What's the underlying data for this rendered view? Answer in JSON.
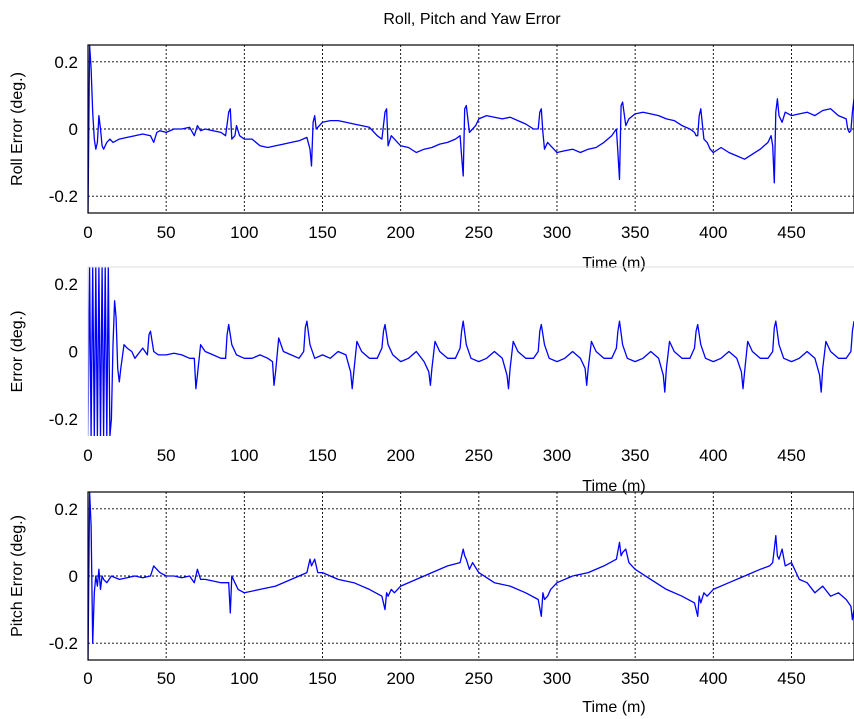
{
  "title": "Roll, Pitch and Yaw Error",
  "chart_data": [
    {
      "type": "line",
      "ylabel": "Roll Error (deg.)",
      "xlabel": "Time (m)",
      "xlim": [
        0,
        490
      ],
      "ylim": [
        -0.25,
        0.25
      ],
      "grid": true,
      "xticks": [
        "0",
        "50",
        "100",
        "150",
        "200",
        "250",
        "300",
        "350",
        "400",
        "450"
      ],
      "yticks": [
        "-0.2",
        "0",
        "0.2"
      ],
      "color": "#0000ff",
      "series": [
        {
          "x": [
            0,
            1,
            2,
            3,
            4,
            5,
            6,
            7,
            8,
            9,
            10,
            12,
            14,
            16,
            20,
            25,
            30,
            35,
            40,
            42,
            44,
            46,
            50,
            55,
            60,
            65,
            68,
            70,
            72,
            75,
            80,
            85,
            88,
            90,
            91,
            92,
            94,
            95,
            97,
            100,
            105,
            110,
            115,
            120,
            125,
            130,
            135,
            140,
            142,
            143,
            144,
            145,
            146,
            148,
            150,
            155,
            160,
            165,
            170,
            175,
            180,
            185,
            188,
            190,
            191,
            192,
            194,
            196,
            198,
            200,
            205,
            210,
            215,
            220,
            225,
            230,
            235,
            238,
            239,
            240,
            241,
            242,
            244,
            246,
            248,
            250,
            255,
            260,
            265,
            270,
            275,
            280,
            285,
            288,
            289,
            290,
            291,
            292,
            294,
            296,
            298,
            300,
            305,
            310,
            315,
            320,
            325,
            330,
            335,
            338,
            339,
            340,
            341,
            342,
            344,
            346,
            350,
            355,
            360,
            365,
            370,
            375,
            380,
            385,
            388,
            389,
            390,
            391,
            392,
            394,
            396,
            398,
            400,
            405,
            410,
            415,
            420,
            425,
            430,
            435,
            437,
            438,
            439,
            440,
            441,
            442,
            444,
            446,
            450,
            455,
            460,
            465,
            470,
            475,
            480,
            485,
            486,
            487,
            488,
            489,
            490
          ],
          "y": [
            -0.25,
            0.25,
            0.18,
            0.05,
            -0.03,
            -0.06,
            -0.04,
            0.04,
            0.0,
            -0.05,
            -0.06,
            -0.04,
            -0.03,
            -0.04,
            -0.03,
            -0.025,
            -0.02,
            -0.015,
            -0.02,
            -0.04,
            -0.01,
            -0.005,
            -0.01,
            0.0,
            0.0,
            0.005,
            -0.02,
            0.01,
            -0.005,
            0.0,
            -0.005,
            -0.01,
            -0.02,
            0.05,
            0.06,
            -0.03,
            -0.02,
            0.01,
            -0.02,
            -0.03,
            -0.03,
            -0.05,
            -0.055,
            -0.05,
            -0.045,
            -0.04,
            -0.035,
            -0.025,
            -0.06,
            -0.11,
            0.02,
            0.04,
            0.0,
            0.01,
            0.02,
            0.025,
            0.025,
            0.02,
            0.015,
            0.01,
            0.005,
            -0.02,
            -0.03,
            0.05,
            0.06,
            -0.05,
            -0.02,
            -0.03,
            -0.04,
            -0.05,
            -0.055,
            -0.07,
            -0.06,
            -0.055,
            -0.045,
            -0.04,
            -0.03,
            -0.02,
            -0.08,
            -0.14,
            0.06,
            0.07,
            -0.01,
            0.0,
            0.01,
            0.03,
            0.04,
            0.035,
            0.03,
            0.035,
            0.025,
            0.015,
            0.0,
            0.0,
            0.05,
            0.06,
            -0.01,
            -0.06,
            -0.04,
            -0.05,
            -0.06,
            -0.07,
            -0.065,
            -0.06,
            -0.07,
            -0.06,
            -0.055,
            -0.04,
            -0.02,
            0.0,
            -0.07,
            -0.15,
            0.07,
            0.08,
            0.01,
            0.03,
            0.045,
            0.05,
            0.045,
            0.04,
            0.03,
            0.025,
            0.01,
            0.0,
            -0.01,
            -0.02,
            -0.02,
            0.04,
            0.06,
            -0.03,
            -0.04,
            -0.06,
            -0.07,
            -0.055,
            -0.07,
            -0.08,
            -0.09,
            -0.075,
            -0.06,
            -0.04,
            -0.02,
            -0.05,
            -0.16,
            0.05,
            0.09,
            0.04,
            0.02,
            0.05,
            0.04,
            0.045,
            0.05,
            0.04,
            0.055,
            0.06,
            0.04,
            0.03,
            0.0,
            -0.01,
            -0.005,
            0.05,
            0.09
          ]
        }
      ]
    },
    {
      "type": "line",
      "ylabel": "Error (deg.)",
      "xlabel": "Time (m)",
      "xlim": [
        0,
        490
      ],
      "ylim": [
        -0.25,
        0.25
      ],
      "grid": false,
      "xticks": [
        "0",
        "50",
        "100",
        "150",
        "200",
        "250",
        "300",
        "350",
        "400",
        "450"
      ],
      "yticks": [
        "-0.2",
        "0",
        "0.2"
      ],
      "color": "#0000ff",
      "series": [
        {
          "x": [
            0,
            1,
            2,
            3,
            4,
            5,
            6,
            7,
            8,
            9,
            10,
            11,
            12,
            13,
            14,
            15,
            16,
            17,
            18,
            19,
            20,
            21,
            23,
            25,
            28,
            30,
            35,
            38,
            39,
            40,
            42,
            45,
            50,
            55,
            60,
            65,
            68,
            69,
            70,
            72,
            75,
            80,
            85,
            88,
            89,
            90,
            92,
            95,
            100,
            105,
            110,
            115,
            118,
            119,
            120,
            122,
            125,
            130,
            135,
            138,
            139,
            140,
            142,
            145,
            150,
            155,
            160,
            165,
            168,
            169,
            170,
            172,
            175,
            180,
            185,
            188,
            189,
            190,
            192,
            195,
            200,
            205,
            210,
            215,
            218,
            219,
            220,
            222,
            225,
            230,
            235,
            238,
            239,
            240,
            242,
            245,
            250,
            255,
            260,
            265,
            268,
            269,
            270,
            272,
            275,
            280,
            285,
            288,
            289,
            290,
            292,
            295,
            300,
            305,
            310,
            315,
            318,
            319,
            320,
            322,
            325,
            330,
            335,
            338,
            339,
            340,
            342,
            345,
            350,
            355,
            360,
            365,
            368,
            369,
            370,
            372,
            375,
            380,
            385,
            388,
            389,
            390,
            392,
            395,
            400,
            405,
            410,
            415,
            418,
            419,
            420,
            422,
            425,
            430,
            435,
            438,
            439,
            440,
            442,
            445,
            450,
            455,
            460,
            465,
            468,
            469,
            470,
            472,
            475,
            480,
            485,
            488,
            489,
            490
          ],
          "y": [
            -0.25,
            0.25,
            -0.25,
            0.25,
            -0.25,
            0.25,
            -0.25,
            0.25,
            -0.25,
            0.25,
            -0.25,
            0.25,
            -0.25,
            0.25,
            -0.25,
            -0.2,
            0.02,
            0.15,
            0.1,
            -0.05,
            -0.09,
            -0.05,
            0.02,
            0.01,
            0.0,
            -0.02,
            0.01,
            -0.01,
            0.05,
            0.06,
            0.0,
            -0.01,
            -0.01,
            -0.005,
            -0.01,
            -0.02,
            -0.02,
            -0.11,
            -0.07,
            0.02,
            0.0,
            -0.01,
            -0.02,
            -0.02,
            0.05,
            0.08,
            0.02,
            -0.01,
            -0.02,
            -0.02,
            -0.01,
            -0.02,
            -0.03,
            -0.1,
            -0.06,
            0.04,
            0.0,
            -0.01,
            -0.02,
            0.0,
            0.07,
            0.09,
            0.02,
            -0.02,
            -0.01,
            -0.02,
            0.0,
            -0.01,
            -0.06,
            -0.11,
            -0.06,
            0.03,
            0.0,
            -0.02,
            -0.02,
            0.01,
            0.06,
            0.08,
            0.02,
            -0.01,
            -0.03,
            -0.02,
            0.0,
            -0.03,
            -0.06,
            -0.1,
            -0.05,
            0.03,
            0.0,
            -0.02,
            -0.02,
            0.01,
            0.06,
            0.09,
            0.02,
            -0.02,
            -0.03,
            -0.02,
            0.0,
            -0.02,
            -0.07,
            -0.11,
            -0.05,
            0.03,
            0.0,
            -0.02,
            -0.02,
            0.0,
            0.06,
            0.08,
            0.02,
            -0.02,
            -0.03,
            -0.02,
            0.0,
            -0.02,
            -0.05,
            -0.1,
            -0.05,
            0.03,
            0.0,
            -0.02,
            -0.02,
            0.01,
            0.06,
            0.09,
            0.02,
            -0.02,
            -0.03,
            -0.02,
            0.0,
            -0.02,
            -0.07,
            -0.12,
            -0.05,
            0.03,
            0.0,
            -0.02,
            -0.02,
            0.01,
            0.06,
            0.08,
            0.02,
            -0.02,
            -0.03,
            -0.02,
            0.0,
            -0.02,
            -0.06,
            -0.11,
            -0.06,
            0.03,
            0.0,
            -0.02,
            -0.02,
            0.0,
            0.07,
            0.09,
            0.02,
            -0.02,
            -0.03,
            -0.02,
            0.0,
            -0.02,
            -0.07,
            -0.12,
            -0.05,
            0.03,
            0.0,
            -0.02,
            -0.02,
            0.0,
            0.06,
            0.09
          ]
        }
      ]
    },
    {
      "type": "line",
      "ylabel": "Pitch Error (deg.)",
      "xlabel": "Time (m)",
      "xlim": [
        0,
        490
      ],
      "ylim": [
        -0.25,
        0.25
      ],
      "grid": true,
      "xticks": [
        "0",
        "50",
        "100",
        "150",
        "200",
        "250",
        "300",
        "350",
        "400",
        "450"
      ],
      "yticks": [
        "-0.2",
        "0",
        "0.2"
      ],
      "color": "#0000ff",
      "series": [
        {
          "x": [
            0,
            1,
            2,
            3,
            4,
            5,
            6,
            7,
            8,
            9,
            10,
            12,
            15,
            20,
            25,
            30,
            35,
            40,
            42,
            44,
            46,
            50,
            55,
            60,
            65,
            68,
            70,
            72,
            75,
            80,
            85,
            88,
            90,
            91,
            92,
            94,
            96,
            100,
            110,
            120,
            130,
            140,
            142,
            143,
            145,
            147,
            150,
            155,
            160,
            170,
            180,
            188,
            190,
            191,
            192,
            194,
            196,
            200,
            210,
            220,
            230,
            238,
            240,
            241,
            242,
            244,
            246,
            250,
            260,
            270,
            280,
            288,
            290,
            291,
            292,
            294,
            296,
            300,
            310,
            320,
            330,
            338,
            340,
            341,
            342,
            344,
            346,
            350,
            360,
            370,
            380,
            388,
            390,
            391,
            392,
            394,
            396,
            400,
            410,
            420,
            430,
            436,
            438,
            439,
            440,
            441,
            442,
            444,
            446,
            450,
            455,
            460,
            465,
            470,
            475,
            480,
            485,
            488,
            489,
            490
          ],
          "y": [
            -0.25,
            0.25,
            0.15,
            -0.2,
            -0.05,
            0.0,
            -0.03,
            0.02,
            -0.04,
            0.0,
            -0.01,
            -0.02,
            0.0,
            -0.01,
            -0.005,
            0.0,
            -0.005,
            0.0,
            0.03,
            0.02,
            0.01,
            0.0,
            0.0,
            -0.005,
            0.0,
            -0.02,
            0.02,
            -0.01,
            -0.01,
            -0.015,
            -0.02,
            -0.02,
            -0.02,
            -0.11,
            0.0,
            -0.02,
            -0.04,
            -0.05,
            -0.04,
            -0.03,
            -0.01,
            0.01,
            0.05,
            0.03,
            0.05,
            0.01,
            0.01,
            0.0,
            -0.01,
            -0.02,
            -0.04,
            -0.06,
            -0.1,
            -0.05,
            -0.06,
            -0.04,
            -0.05,
            -0.03,
            -0.01,
            0.01,
            0.03,
            0.04,
            0.08,
            0.06,
            0.05,
            0.02,
            0.04,
            0.01,
            -0.02,
            -0.03,
            -0.05,
            -0.07,
            -0.12,
            -0.05,
            -0.07,
            -0.06,
            -0.04,
            -0.02,
            0.0,
            0.01,
            0.03,
            0.05,
            0.1,
            0.06,
            0.07,
            0.08,
            0.04,
            0.02,
            -0.01,
            -0.04,
            -0.06,
            -0.08,
            -0.12,
            -0.06,
            -0.08,
            -0.05,
            -0.06,
            -0.04,
            -0.02,
            0.0,
            0.02,
            0.03,
            0.04,
            0.08,
            0.12,
            0.06,
            0.05,
            0.08,
            0.03,
            0.04,
            -0.01,
            -0.02,
            -0.05,
            -0.03,
            -0.06,
            -0.05,
            -0.07,
            -0.09,
            -0.13,
            -0.1
          ]
        }
      ]
    }
  ]
}
